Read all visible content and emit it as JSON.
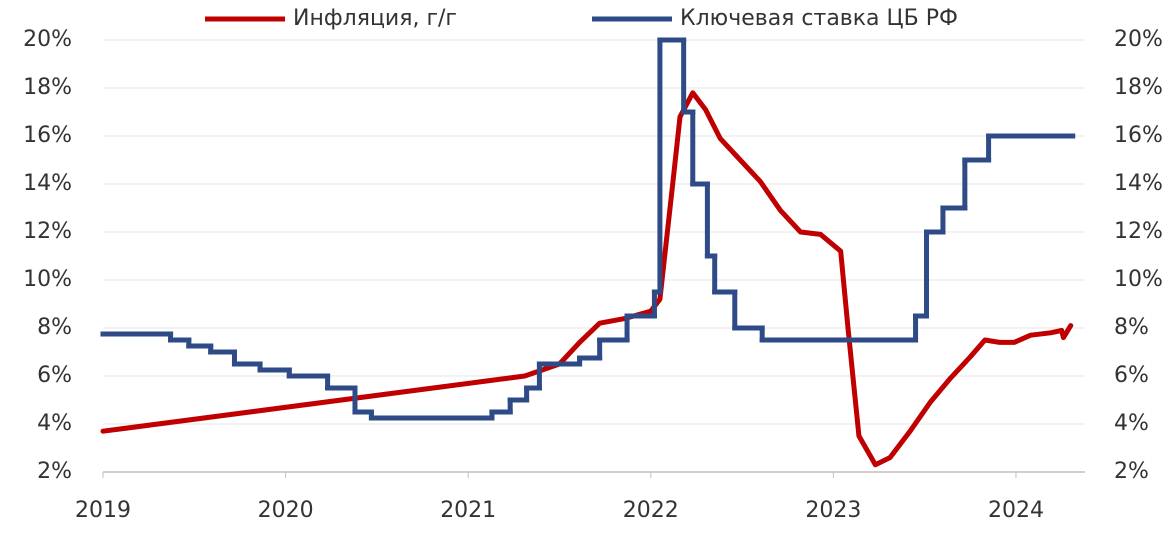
{
  "chart_data": {
    "type": "line",
    "legend": "top",
    "grid": true,
    "xlim": [
      2019,
      2024.378
    ],
    "xticks": [
      2019,
      2020,
      2021,
      2022,
      2023,
      2024
    ],
    "ylim": [
      2,
      20
    ],
    "yticks": [
      {
        "value": 2,
        "label": "2%"
      },
      {
        "value": 4,
        "label": "4%"
      },
      {
        "value": 6,
        "label": "6%"
      },
      {
        "value": 8,
        "label": "8%"
      },
      {
        "value": 10,
        "label": "10%"
      },
      {
        "value": 12,
        "label": "12%"
      },
      {
        "value": 14,
        "label": "14%"
      },
      {
        "value": 16,
        "label": "16%"
      },
      {
        "value": 18,
        "label": "18%"
      },
      {
        "value": 20,
        "label": "20%"
      }
    ],
    "y2lim": [
      2,
      20
    ],
    "y2ticks": [
      {
        "value": 2,
        "label": "2%"
      },
      {
        "value": 4,
        "label": "4%"
      },
      {
        "value": 6,
        "label": "6%"
      },
      {
        "value": 8,
        "label": "8%"
      },
      {
        "value": 10,
        "label": "10%"
      },
      {
        "value": 12,
        "label": "12%"
      },
      {
        "value": 14,
        "label": "14%"
      },
      {
        "value": 16,
        "label": "16%"
      },
      {
        "value": 18,
        "label": "18%"
      },
      {
        "value": 20,
        "label": "20%"
      }
    ],
    "series": [
      {
        "name": "Инфляция, г/г",
        "color": "#c00000",
        "drawstyle": "linear",
        "x": [
          2019,
          2021.31,
          2021.5,
          2021.61,
          2021.72,
          2021.86,
          2022.0,
          2022.05,
          2022.12,
          2022.16,
          2022.23,
          2022.3,
          2022.38,
          2022.49,
          2022.6,
          2022.71,
          2022.82,
          2022.93,
          2023.04,
          2023.08,
          2023.14,
          2023.23,
          2023.31,
          2023.42,
          2023.53,
          2023.64,
          2023.75,
          2023.83,
          2023.91,
          2023.99,
          2024.08,
          2024.19,
          2024.25,
          2024.26,
          2024.3
        ],
        "values": [
          3.7,
          6.0,
          6.5,
          7.4,
          8.2,
          8.4,
          8.7,
          9.2,
          14,
          16.8,
          17.8,
          17.1,
          15.9,
          15.0,
          14.1,
          12.9,
          12.0,
          11.9,
          11.2,
          8,
          3.5,
          2.3,
          2.6,
          3.7,
          4.9,
          5.9,
          6.8,
          7.5,
          7.4,
          7.4,
          7.7,
          7.8,
          7.9,
          7.6,
          8.1
        ]
      },
      {
        "name": "Ключевая ставка ЦБ РФ",
        "color": "#2e4a87",
        "drawstyle": "steps-post",
        "axis": "y2",
        "x": [
          2019,
          2019.37,
          2019.47,
          2019.59,
          2019.72,
          2019.86,
          2020.02,
          2020.23,
          2020.38,
          2020.47,
          2021.13,
          2021.23,
          2021.32,
          2021.39,
          2021.61,
          2021.72,
          2021.87,
          2022.02,
          2022.05,
          2022.18,
          2022.23,
          2022.31,
          2022.35,
          2022.46,
          2022.61,
          2023.45,
          2023.51,
          2023.6,
          2023.72,
          2023.85,
          2024.31
        ],
        "values": [
          7.75,
          7.5,
          7.25,
          7,
          6.5,
          6.25,
          6,
          5.5,
          4.5,
          4.25,
          4.5,
          5,
          5.5,
          6.5,
          6.75,
          7.5,
          8.5,
          9.5,
          20,
          17,
          14,
          11,
          9.5,
          8,
          7.5,
          8.5,
          12,
          13,
          15,
          16,
          16
        ]
      }
    ]
  }
}
